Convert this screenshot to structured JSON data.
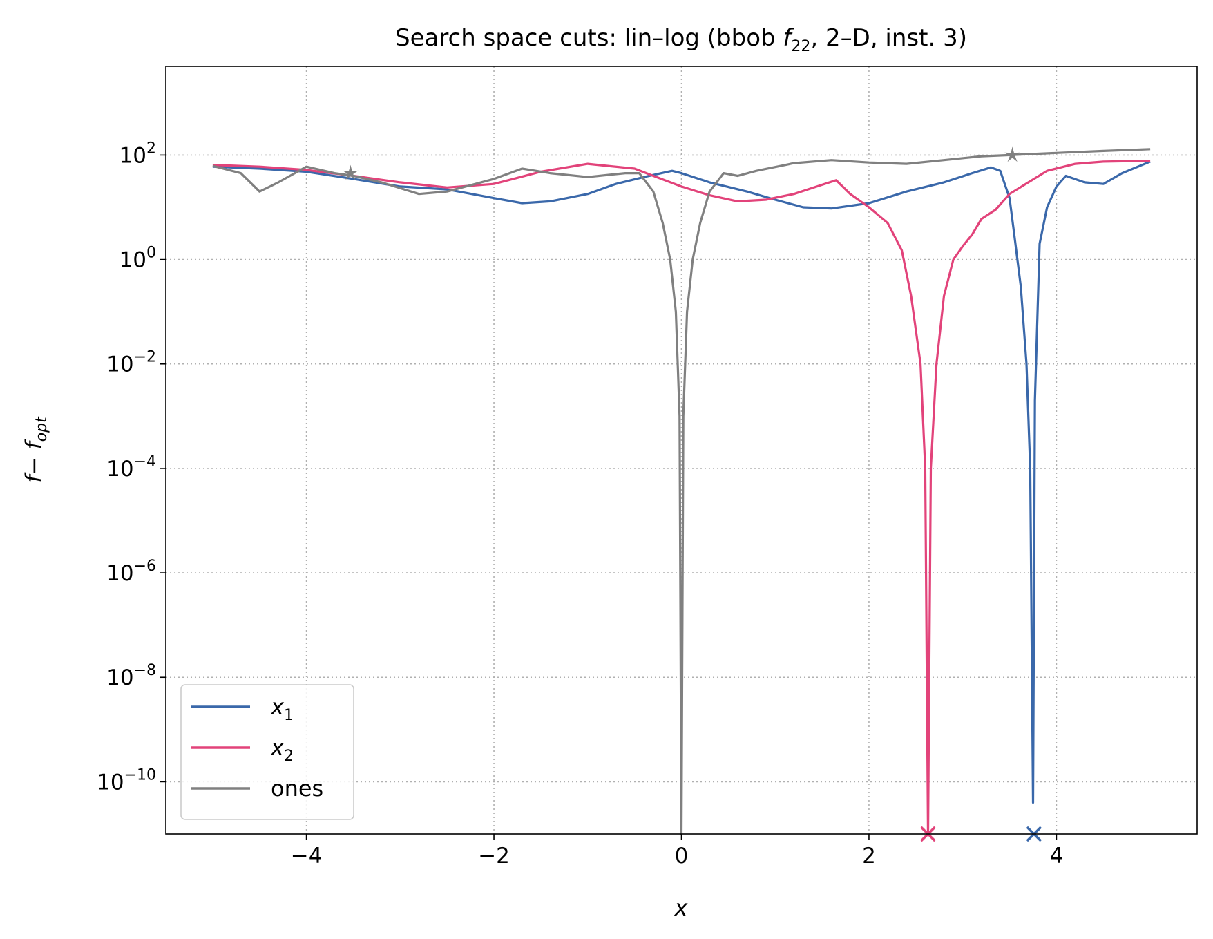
{
  "chart_data": {
    "type": "line",
    "title_parts": {
      "prefix": "Search space cuts: lin–log (bbob ",
      "func": "f",
      "func_sub": "22",
      "suffix": ", 2–D, inst. 3)"
    },
    "xlabel": "x",
    "ylabel": {
      "main": "f",
      "minus": "− ",
      "opt": "f",
      "opt_sub": "opt"
    },
    "x_scale": "linear",
    "y_scale": "log",
    "xlim": [
      -5.5,
      5.5
    ],
    "ylim": [
      1e-11,
      5000.0
    ],
    "grid": true,
    "legend_position": "lower left",
    "xticks": [
      {
        "value": -4,
        "label": "−4"
      },
      {
        "value": -2,
        "label": "−2"
      },
      {
        "value": 0,
        "label": "0"
      },
      {
        "value": 2,
        "label": "2"
      },
      {
        "value": 4,
        "label": "4"
      }
    ],
    "yticks": [
      {
        "exp": 2,
        "base": "10",
        "sup": "2"
      },
      {
        "exp": 0,
        "base": "10",
        "sup": "0"
      },
      {
        "exp": -2,
        "base": "10",
        "sup": "−2"
      },
      {
        "exp": -4,
        "base": "10",
        "sup": "−4"
      },
      {
        "exp": -6,
        "base": "10",
        "sup": "−6"
      },
      {
        "exp": -8,
        "base": "10",
        "sup": "−8"
      },
      {
        "exp": -10,
        "base": "10",
        "sup": "−10"
      }
    ],
    "series": [
      {
        "name": "x",
        "name_sub": "1",
        "color": "#3a68aa",
        "points": [
          [
            -5.0,
            60
          ],
          [
            -4.5,
            55
          ],
          [
            -4.0,
            48
          ],
          [
            -3.5,
            35
          ],
          [
            -3.0,
            25
          ],
          [
            -2.5,
            22
          ],
          [
            -2.0,
            15
          ],
          [
            -1.7,
            12
          ],
          [
            -1.4,
            13
          ],
          [
            -1.0,
            18
          ],
          [
            -0.7,
            28
          ],
          [
            -0.4,
            38
          ],
          [
            -0.1,
            50
          ],
          [
            0.0,
            45
          ],
          [
            0.3,
            30
          ],
          [
            0.7,
            20
          ],
          [
            1.0,
            14
          ],
          [
            1.3,
            10
          ],
          [
            1.6,
            9.5
          ],
          [
            2.0,
            12
          ],
          [
            2.4,
            20
          ],
          [
            2.8,
            30
          ],
          [
            3.1,
            45
          ],
          [
            3.3,
            58
          ],
          [
            3.4,
            50
          ],
          [
            3.5,
            15
          ],
          [
            3.55,
            3
          ],
          [
            3.62,
            0.3
          ],
          [
            3.68,
            0.01
          ],
          [
            3.72,
            0.0001
          ],
          [
            3.75,
            4e-11
          ],
          [
            3.77,
            0.002
          ],
          [
            3.82,
            2
          ],
          [
            3.9,
            10
          ],
          [
            4.0,
            25
          ],
          [
            4.1,
            40
          ],
          [
            4.3,
            30
          ],
          [
            4.5,
            28
          ],
          [
            4.7,
            45
          ],
          [
            5.0,
            75
          ]
        ],
        "optimum_x": 3.76
      },
      {
        "name": "x",
        "name_sub": "2",
        "color": "#e2437a",
        "points": [
          [
            -5.0,
            65
          ],
          [
            -4.5,
            60
          ],
          [
            -4.0,
            52
          ],
          [
            -3.5,
            40
          ],
          [
            -3.0,
            30
          ],
          [
            -2.5,
            24
          ],
          [
            -2.0,
            28
          ],
          [
            -1.5,
            48
          ],
          [
            -1.0,
            68
          ],
          [
            -0.5,
            55
          ],
          [
            -0.3,
            40
          ],
          [
            0.0,
            25
          ],
          [
            0.3,
            17
          ],
          [
            0.6,
            13
          ],
          [
            0.9,
            14
          ],
          [
            1.2,
            18
          ],
          [
            1.5,
            27
          ],
          [
            1.65,
            33
          ],
          [
            1.8,
            18
          ],
          [
            2.0,
            10
          ],
          [
            2.2,
            5
          ],
          [
            2.35,
            1.5
          ],
          [
            2.45,
            0.2
          ],
          [
            2.55,
            0.01
          ],
          [
            2.6,
            0.0001
          ],
          [
            2.63,
            1e-11
          ],
          [
            2.66,
            0.0001
          ],
          [
            2.72,
            0.01
          ],
          [
            2.8,
            0.2
          ],
          [
            2.9,
            1
          ],
          [
            3.0,
            1.8
          ],
          [
            3.1,
            3
          ],
          [
            3.2,
            6
          ],
          [
            3.35,
            9
          ],
          [
            3.5,
            18
          ],
          [
            3.7,
            30
          ],
          [
            3.9,
            50
          ],
          [
            4.2,
            68
          ],
          [
            4.5,
            75
          ],
          [
            5.0,
            78
          ]
        ],
        "optimum_x": 2.63
      },
      {
        "name": "ones",
        "name_sub": "",
        "color": "#808080",
        "points": [
          [
            -5.0,
            62
          ],
          [
            -4.7,
            45
          ],
          [
            -4.5,
            20
          ],
          [
            -4.3,
            30
          ],
          [
            -4.0,
            60
          ],
          [
            -3.7,
            45
          ],
          [
            -3.5,
            40
          ],
          [
            -3.2,
            30
          ],
          [
            -2.8,
            18
          ],
          [
            -2.5,
            20
          ],
          [
            -2.0,
            35
          ],
          [
            -1.7,
            55
          ],
          [
            -1.4,
            45
          ],
          [
            -1.0,
            38
          ],
          [
            -0.6,
            45
          ],
          [
            -0.45,
            45
          ],
          [
            -0.3,
            20
          ],
          [
            -0.2,
            5
          ],
          [
            -0.12,
            1
          ],
          [
            -0.06,
            0.1
          ],
          [
            -0.02,
            0.001
          ],
          [
            0.0,
            1e-11
          ],
          [
            0.02,
            0.001
          ],
          [
            0.06,
            0.1
          ],
          [
            0.12,
            1
          ],
          [
            0.2,
            5
          ],
          [
            0.3,
            20
          ],
          [
            0.45,
            45
          ],
          [
            0.6,
            40
          ],
          [
            0.8,
            50
          ],
          [
            1.2,
            70
          ],
          [
            1.6,
            80
          ],
          [
            2.0,
            72
          ],
          [
            2.4,
            68
          ],
          [
            2.8,
            80
          ],
          [
            3.2,
            95
          ],
          [
            3.5,
            100
          ],
          [
            4.0,
            110
          ],
          [
            4.5,
            120
          ],
          [
            5.0,
            130
          ]
        ],
        "optimum_x": 0.0
      }
    ],
    "star_markers": [
      {
        "series_index": 2,
        "x": -3.53,
        "y": 45
      },
      {
        "series_index": 2,
        "x": 3.53,
        "y": 100
      }
    ]
  }
}
